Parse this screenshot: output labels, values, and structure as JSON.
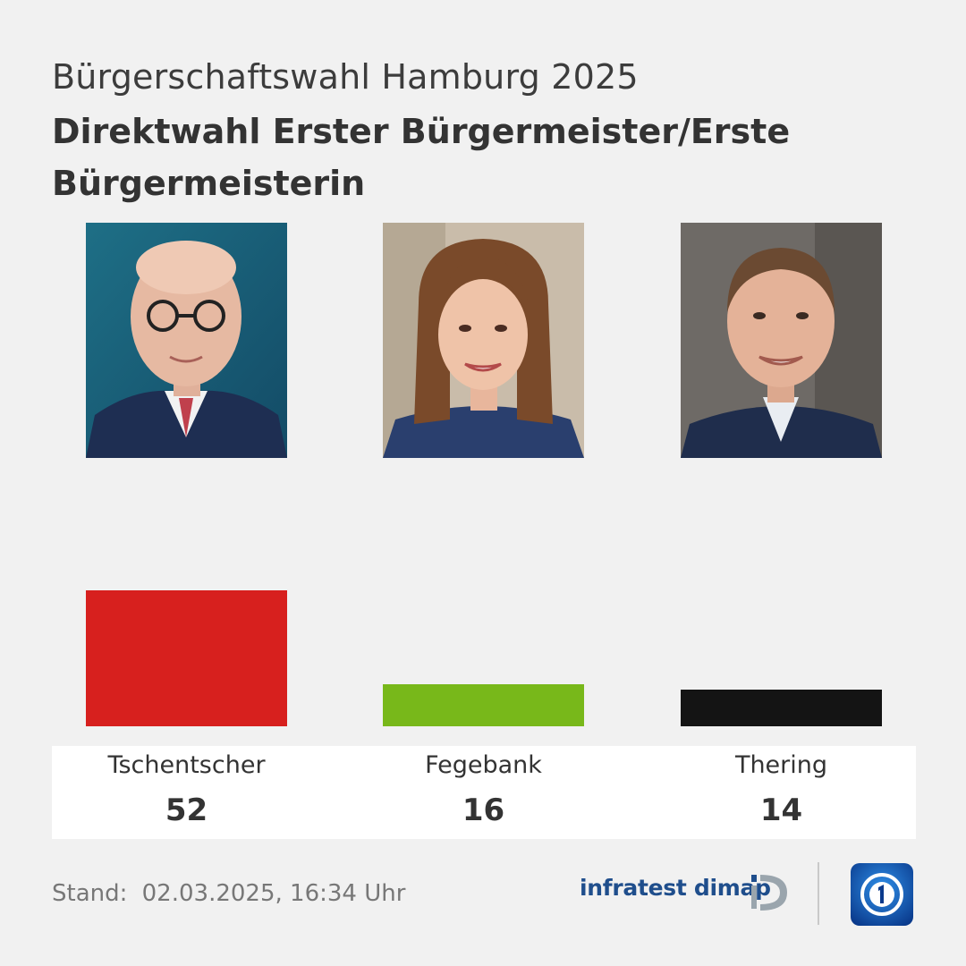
{
  "header": {
    "supertitle": "Bürgerschaftswahl Hamburg 2025",
    "title": "Direktwahl Erster Bürgermeister/Erste Bürgermeisterin"
  },
  "chart_data": {
    "type": "bar",
    "categories": [
      "Tschentscher",
      "Fegebank",
      "Thering"
    ],
    "values": [
      52,
      16,
      14
    ],
    "colors": [
      "#d7201e",
      "#78b81a",
      "#141414"
    ],
    "ylim": [
      0,
      100
    ]
  },
  "footer": {
    "stand_label": "Stand:",
    "stand_date": "02.03.2025, 16:34 Uhr",
    "institute_logo_text": "infratest dimap",
    "broadcaster_icon": "ard-logo-icon"
  }
}
